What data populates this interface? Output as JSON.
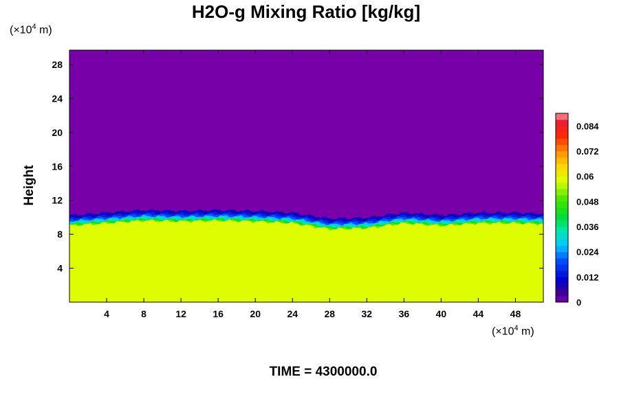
{
  "chart_data": {
    "type": "heatmap",
    "title": "H2O-g Mixing Ratio [kg/kg]",
    "ylabel": "Height",
    "xlabel": "",
    "x_unit": {
      "prefix": "(×10",
      "exp": "4",
      "suffix": " m)"
    },
    "y_unit": {
      "prefix": "(×10",
      "exp": "4",
      "suffix": " m)"
    },
    "x_ticks": [
      4,
      8,
      12,
      16,
      20,
      24,
      28,
      32,
      36,
      40,
      44,
      48
    ],
    "y_ticks": [
      4,
      8,
      12,
      16,
      20,
      24,
      28
    ],
    "xlim": [
      0,
      51
    ],
    "ylim": [
      0,
      29.7
    ],
    "colorbar": {
      "ticks": [
        0,
        0.012,
        0.024,
        0.036,
        0.048,
        0.06,
        0.072,
        0.084
      ],
      "tick_labels": [
        "0",
        "0.012",
        "0.024",
        "0.036",
        "0.048",
        "0.06",
        "0.072",
        "0.084"
      ],
      "range": [
        0,
        0.09
      ],
      "levels": 30
    },
    "field": {
      "lower_value": 0.058,
      "upper_value": 0.0,
      "interface_height_profile": {
        "x": [
          0,
          4,
          8,
          12,
          16,
          20,
          24,
          28,
          32,
          36,
          40,
          44,
          48,
          51
        ],
        "y": [
          9.0,
          9.3,
          9.6,
          9.5,
          9.6,
          9.5,
          9.3,
          8.6,
          8.7,
          9.3,
          9.0,
          9.3,
          9.3,
          9.2
        ]
      }
    }
  },
  "time_label": "TIME = 4300000.0"
}
